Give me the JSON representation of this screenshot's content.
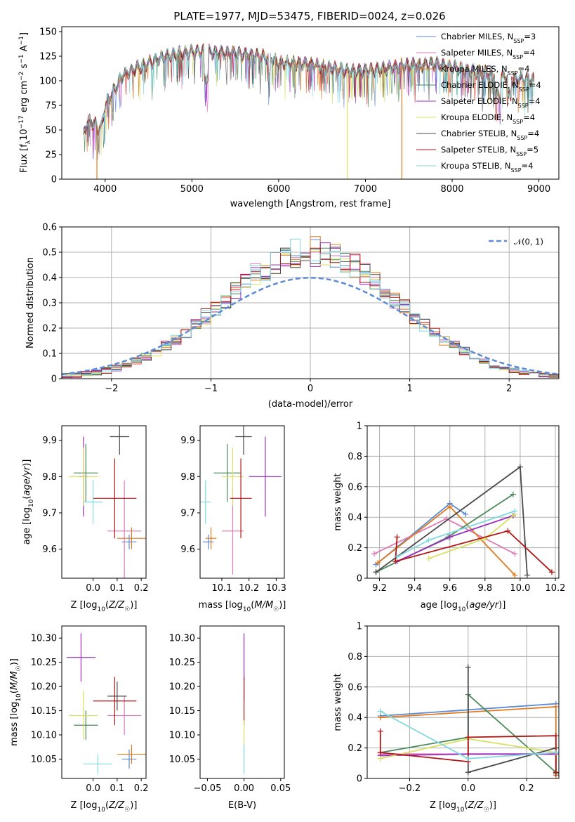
{
  "figure": {
    "title": "PLATE=1977, MJD=53475, FIBERID=0024, z=0.026"
  },
  "colors": {
    "chabrier_miles": "#5b8bd6",
    "salpeter_miles": "#e07ab8",
    "kroupa_miles": "#e07a20",
    "chabrier_elodie": "#4a8a5a",
    "salpeter_elodie": "#9a2fbf",
    "kroupa_elodie": "#d8e060",
    "chabrier_stelib": "#4a4a4a",
    "salpeter_stelib": "#b01818",
    "kroupa_stelib": "#80d8e0",
    "gaussian": "#5b8bd6",
    "grid": "#b0b0b0"
  },
  "legend_spectrum": [
    "Chabrier MILES, N_SSP=3",
    "Salpeter MILES, N_SSP=4",
    "Kroupa MILES, N_SSP=4",
    "Chabrier ELODIE, N_SSP=4",
    "Salpeter ELODIE, N_SSP=4",
    "Kroupa ELODIE, N_SSP=4",
    "Chabrier STELIB, N_SSP=4",
    "Salpeter STELIB, N_SSP=5",
    "Kroupa STELIB, N_SSP=4"
  ],
  "legend_hist": "𝒩(0, 1)",
  "chart_data": [
    {
      "id": "spectrum",
      "type": "line",
      "xlabel": "wavelength [Angstrom, rest frame]",
      "ylabel": "Flux [f_λ10^-17 erg cm^-2 s^-1 A^-1]",
      "xlim": [
        3500,
        9230
      ],
      "ylim": [
        0,
        155
      ],
      "xticks": [
        4000,
        5000,
        6000,
        7000,
        8000,
        9000
      ],
      "yticks": [
        0,
        25,
        50,
        75,
        100,
        125,
        150
      ],
      "continuum": {
        "x": [
          3750,
          3800,
          3900,
          3950,
          4000,
          4100,
          4200,
          4300,
          4500,
          4700,
          4900,
          5100,
          5300,
          5500,
          5700,
          5900,
          6000,
          6200,
          6400,
          6600,
          6800,
          7000,
          7200,
          7400,
          7600,
          7800,
          8000,
          8200,
          8400,
          8600,
          8800,
          8950
        ],
        "y": [
          45,
          60,
          55,
          50,
          75,
          90,
          105,
          110,
          118,
          125,
          128,
          130,
          128,
          128,
          126,
          124,
          118,
          118,
          116,
          113,
          110,
          110,
          112,
          115,
          116,
          117,
          114,
          110,
          108,
          104,
          102,
          101
        ]
      },
      "dropouts": [
        {
          "x": 3905,
          "y": 0,
          "series": "kroupa_miles"
        },
        {
          "x": 6790,
          "y": 0,
          "series": "kroupa_elodie"
        },
        {
          "x": 7420,
          "y": 0,
          "series": "kroupa_miles"
        }
      ]
    },
    {
      "id": "residual_hist",
      "type": "bar",
      "xlabel": "(data-model)/error",
      "ylabel": "Normed distribution",
      "xlim": [
        -2.5,
        2.5
      ],
      "ylim": [
        0,
        0.6
      ],
      "xticks": [
        -2,
        -1,
        0,
        1,
        2
      ],
      "yticks": [
        0.0,
        0.1,
        0.2,
        0.3,
        0.4,
        0.5,
        0.6
      ],
      "grid": true,
      "gaussian": {
        "mean": 0,
        "sigma": 1
      }
    },
    {
      "id": "age_vs_z",
      "type": "scatter",
      "xlabel": "Z [log10(Z/Z☉)]",
      "ylabel": "age  [log10(age/yr)]",
      "xlim": [
        -0.13,
        0.22
      ],
      "ylim": [
        9.52,
        9.94
      ],
      "xticks": [
        0.0,
        0.1,
        0.2
      ],
      "xtick_labels": [
        "0.0",
        "0.1",
        "0.2"
      ],
      "yticks": [
        9.6,
        9.7,
        9.8,
        9.9
      ],
      "points": [
        {
          "series": "chabrier_miles",
          "x": 0.15,
          "y": 9.62,
          "xerr": 0.03,
          "yerr": 0.02
        },
        {
          "series": "salpeter_miles",
          "x": 0.13,
          "y": 9.65,
          "xerr": 0.07,
          "yerr": 0.14
        },
        {
          "series": "kroupa_miles",
          "x": 0.16,
          "y": 9.63,
          "xerr": 0.06,
          "yerr": 0.03
        },
        {
          "series": "chabrier_elodie",
          "x": -0.03,
          "y": 9.81,
          "xerr": 0.05,
          "yerr": 0.08
        },
        {
          "series": "salpeter_elodie",
          "x": -0.04,
          "y": 9.8,
          "xerr": 0.02,
          "yerr": 0.11
        },
        {
          "series": "kroupa_elodie",
          "x": -0.04,
          "y": 9.8,
          "xerr": 0.06,
          "yerr": 0.08
        },
        {
          "series": "chabrier_stelib",
          "x": 0.11,
          "y": 9.91,
          "xerr": 0.04,
          "yerr": 0.05
        },
        {
          "series": "salpeter_stelib",
          "x": 0.09,
          "y": 9.74,
          "xerr": 0.09,
          "yerr": 0.11
        },
        {
          "series": "kroupa_stelib",
          "x": 0.0,
          "y": 9.73,
          "xerr": 0.04,
          "yerr": 0.06
        }
      ]
    },
    {
      "id": "age_vs_mass",
      "type": "scatter",
      "xlabel": "mass [log10(M/M☉)]",
      "ylabel": "",
      "xlim": [
        10.02,
        10.33
      ],
      "ylim": [
        9.52,
        9.94
      ],
      "xticks": [
        10.1,
        10.2,
        10.3
      ],
      "xtick_labels": [
        "10.1",
        "10.2",
        "10.3"
      ],
      "yticks": [
        9.6,
        9.7,
        9.8,
        9.9
      ],
      "points": [
        {
          "series": "chabrier_miles",
          "x": 10.05,
          "y": 9.62,
          "xerr": 0.02,
          "yerr": 0.02
        },
        {
          "series": "salpeter_miles",
          "x": 10.14,
          "y": 9.65,
          "xerr": 0.04,
          "yerr": 0.12
        },
        {
          "series": "kroupa_miles",
          "x": 10.06,
          "y": 9.63,
          "xerr": 0.02,
          "yerr": 0.03
        },
        {
          "series": "chabrier_elodie",
          "x": 10.12,
          "y": 9.81,
          "xerr": 0.05,
          "yerr": 0.08
        },
        {
          "series": "salpeter_elodie",
          "x": 10.26,
          "y": 9.8,
          "xerr": 0.06,
          "yerr": 0.11
        },
        {
          "series": "kroupa_elodie",
          "x": 10.14,
          "y": 9.8,
          "xerr": 0.04,
          "yerr": 0.08
        },
        {
          "series": "chabrier_stelib",
          "x": 10.18,
          "y": 9.91,
          "xerr": 0.03,
          "yerr": 0.05
        },
        {
          "series": "salpeter_stelib",
          "x": 10.17,
          "y": 9.74,
          "xerr": 0.04,
          "yerr": 0.11
        },
        {
          "series": "kroupa_stelib",
          "x": 10.04,
          "y": 9.73,
          "xerr": 0.02,
          "yerr": 0.06
        }
      ]
    },
    {
      "id": "weight_vs_age",
      "type": "line",
      "xlabel": "age  [log10(age/yr)]",
      "ylabel": "mass weight",
      "xlim": [
        9.13,
        10.22
      ],
      "ylim": [
        0.0,
        1.0
      ],
      "xticks": [
        9.2,
        9.4,
        9.6,
        9.8,
        10.0,
        10.2
      ],
      "xtick_labels": [
        "9.2",
        "9.4",
        "9.6",
        "9.8",
        "10.0",
        "10.2"
      ],
      "yticks": [
        0.0,
        0.2,
        0.4,
        0.6,
        0.8,
        1.0
      ],
      "grid": true,
      "series": [
        {
          "key": "chabrier_miles",
          "x": [
            9.18,
            9.6,
            9.69
          ],
          "y": [
            0.09,
            0.49,
            0.42
          ]
        },
        {
          "key": "salpeter_miles",
          "x": [
            9.17,
            9.58,
            9.97
          ],
          "y": [
            0.16,
            0.39,
            0.16
          ]
        },
        {
          "key": "kroupa_miles",
          "x": [
            9.19,
            9.6,
            9.97
          ],
          "y": [
            0.1,
            0.47,
            0.02
          ]
        },
        {
          "key": "chabrier_elodie",
          "x": [
            9.18,
            9.59,
            9.96
          ],
          "y": [
            0.04,
            0.27,
            0.55
          ]
        },
        {
          "key": "salpeter_elodie",
          "x": [
            9.3,
            9.6,
            9.96
          ],
          "y": [
            0.11,
            0.27,
            0.41
          ]
        },
        {
          "key": "kroupa_elodie",
          "x": [
            9.48,
            9.8,
            9.97
          ],
          "y": [
            0.13,
            0.26,
            0.42
          ]
        },
        {
          "key": "chabrier_stelib",
          "x": [
            9.18,
            10.0,
            10.04
          ],
          "y": [
            0.04,
            0.73,
            0.02
          ]
        },
        {
          "key": "salpeter_stelib",
          "x": [
            9.3,
            9.29,
            9.93,
            10.18
          ],
          "y": [
            0.27,
            0.11,
            0.31,
            0.04
          ]
        },
        {
          "key": "kroupa_stelib",
          "x": [
            9.3,
            9.48,
            9.97
          ],
          "y": [
            0.14,
            0.25,
            0.44
          ]
        }
      ]
    },
    {
      "id": "mass_vs_z",
      "type": "scatter",
      "xlabel": "Z [log10(Z/Z☉)]",
      "ylabel": "mass [log10(M/M☉)]",
      "xlim": [
        -0.13,
        0.22
      ],
      "ylim": [
        10.01,
        10.325
      ],
      "xticks": [
        0.0,
        0.1,
        0.2
      ],
      "xtick_labels": [
        "0.0",
        "0.1",
        "0.2"
      ],
      "yticks": [
        10.05,
        10.1,
        10.15,
        10.2,
        10.25,
        10.3
      ],
      "ytick_labels": [
        "10.05",
        "10.10",
        "10.15",
        "10.20",
        "10.25",
        "10.30"
      ],
      "points": [
        {
          "series": "chabrier_miles",
          "x": 0.15,
          "y": 10.05,
          "xerr": 0.03,
          "yerr": 0.02
        },
        {
          "series": "salpeter_miles",
          "x": 0.13,
          "y": 10.14,
          "xerr": 0.07,
          "yerr": 0.04
        },
        {
          "series": "kroupa_miles",
          "x": 0.16,
          "y": 10.06,
          "xerr": 0.06,
          "yerr": 0.02
        },
        {
          "series": "chabrier_elodie",
          "x": -0.03,
          "y": 10.12,
          "xerr": 0.05,
          "yerr": 0.03
        },
        {
          "series": "salpeter_elodie",
          "x": -0.05,
          "y": 10.26,
          "xerr": 0.06,
          "yerr": 0.05
        },
        {
          "series": "kroupa_elodie",
          "x": -0.04,
          "y": 10.14,
          "xerr": 0.06,
          "yerr": 0.05
        },
        {
          "series": "chabrier_stelib",
          "x": 0.1,
          "y": 10.18,
          "xerr": 0.04,
          "yerr": 0.03
        },
        {
          "series": "salpeter_stelib",
          "x": 0.09,
          "y": 10.17,
          "xerr": 0.09,
          "yerr": 0.05
        },
        {
          "series": "kroupa_stelib",
          "x": 0.02,
          "y": 10.04,
          "xerr": 0.06,
          "yerr": 0.02
        }
      ]
    },
    {
      "id": "mass_vs_ebv",
      "type": "scatter",
      "xlabel": "E(B-V)",
      "ylabel": "",
      "xlim": [
        -0.06,
        0.055
      ],
      "ylim": [
        10.01,
        10.325
      ],
      "xticks": [
        -0.05,
        0.0,
        0.05
      ],
      "xtick_labels": [
        "−0.05",
        "0.00",
        "0.05"
      ],
      "yticks": [
        10.05,
        10.1,
        10.15,
        10.2,
        10.25,
        10.3
      ],
      "ytick_labels": [
        "10.05",
        "10.10",
        "10.15",
        "10.20",
        "10.25",
        "10.30"
      ],
      "points": [
        {
          "series": "salpeter_elodie",
          "x": 0.0,
          "y": 10.24,
          "xerr": 0.0,
          "yerr": 0.07
        },
        {
          "series": "salpeter_stelib",
          "x": 0.0,
          "y": 10.17,
          "xerr": 0.0,
          "yerr": 0.05
        },
        {
          "series": "kroupa_elodie",
          "x": 0.0,
          "y": 10.1,
          "xerr": 0.0,
          "yerr": 0.03
        },
        {
          "series": "kroupa_stelib",
          "x": 0.0,
          "y": 10.05,
          "xerr": 0.0,
          "yerr": 0.03
        }
      ]
    },
    {
      "id": "weight_vs_z",
      "type": "line",
      "xlabel": "Z [log10(Z/Z☉)]",
      "ylabel": "mass weight",
      "xlim": [
        -0.345,
        0.31
      ],
      "ylim": [
        0.0,
        1.0
      ],
      "xticks": [
        -0.2,
        0.0,
        0.2
      ],
      "xtick_labels": [
        "−0.2",
        "0.0",
        "0.2"
      ],
      "yticks": [
        0.0,
        0.2,
        0.4,
        0.6,
        0.8,
        1.0
      ],
      "grid": true,
      "series": [
        {
          "key": "chabrier_miles",
          "x": [
            -0.3,
            0.3
          ],
          "y": [
            0.41,
            0.49
          ]
        },
        {
          "key": "salpeter_miles",
          "x": [
            -0.3,
            0.3
          ],
          "y": [
            0.16,
            0.16
          ]
        },
        {
          "key": "kroupa_miles",
          "x": [
            -0.3,
            0.3,
            0.3
          ],
          "y": [
            0.4,
            0.47,
            0.02
          ]
        },
        {
          "key": "chabrier_elodie",
          "x": [
            -0.3,
            0.0,
            0.0,
            0.3
          ],
          "y": [
            0.17,
            0.27,
            0.55,
            0.04
          ]
        },
        {
          "key": "salpeter_elodie",
          "x": [
            -0.3,
            0.0,
            0.3
          ],
          "y": [
            0.15,
            0.16,
            0.16
          ]
        },
        {
          "key": "kroupa_elodie",
          "x": [
            -0.3,
            0.0,
            0.3
          ],
          "y": [
            0.13,
            0.26,
            0.17
          ]
        },
        {
          "key": "chabrier_stelib",
          "x": [
            0.0,
            0.0,
            0.3,
            0.3
          ],
          "y": [
            0.73,
            0.04,
            0.2,
            0.03
          ]
        },
        {
          "key": "salpeter_stelib",
          "x": [
            -0.3,
            -0.3,
            0.0,
            0.0,
            0.3,
            0.3
          ],
          "y": [
            0.31,
            0.17,
            0.11,
            0.27,
            0.28,
            0.04
          ]
        },
        {
          "key": "kroupa_stelib",
          "x": [
            -0.3,
            0.0,
            0.3
          ],
          "y": [
            0.44,
            0.13,
            0.17
          ]
        }
      ]
    }
  ]
}
